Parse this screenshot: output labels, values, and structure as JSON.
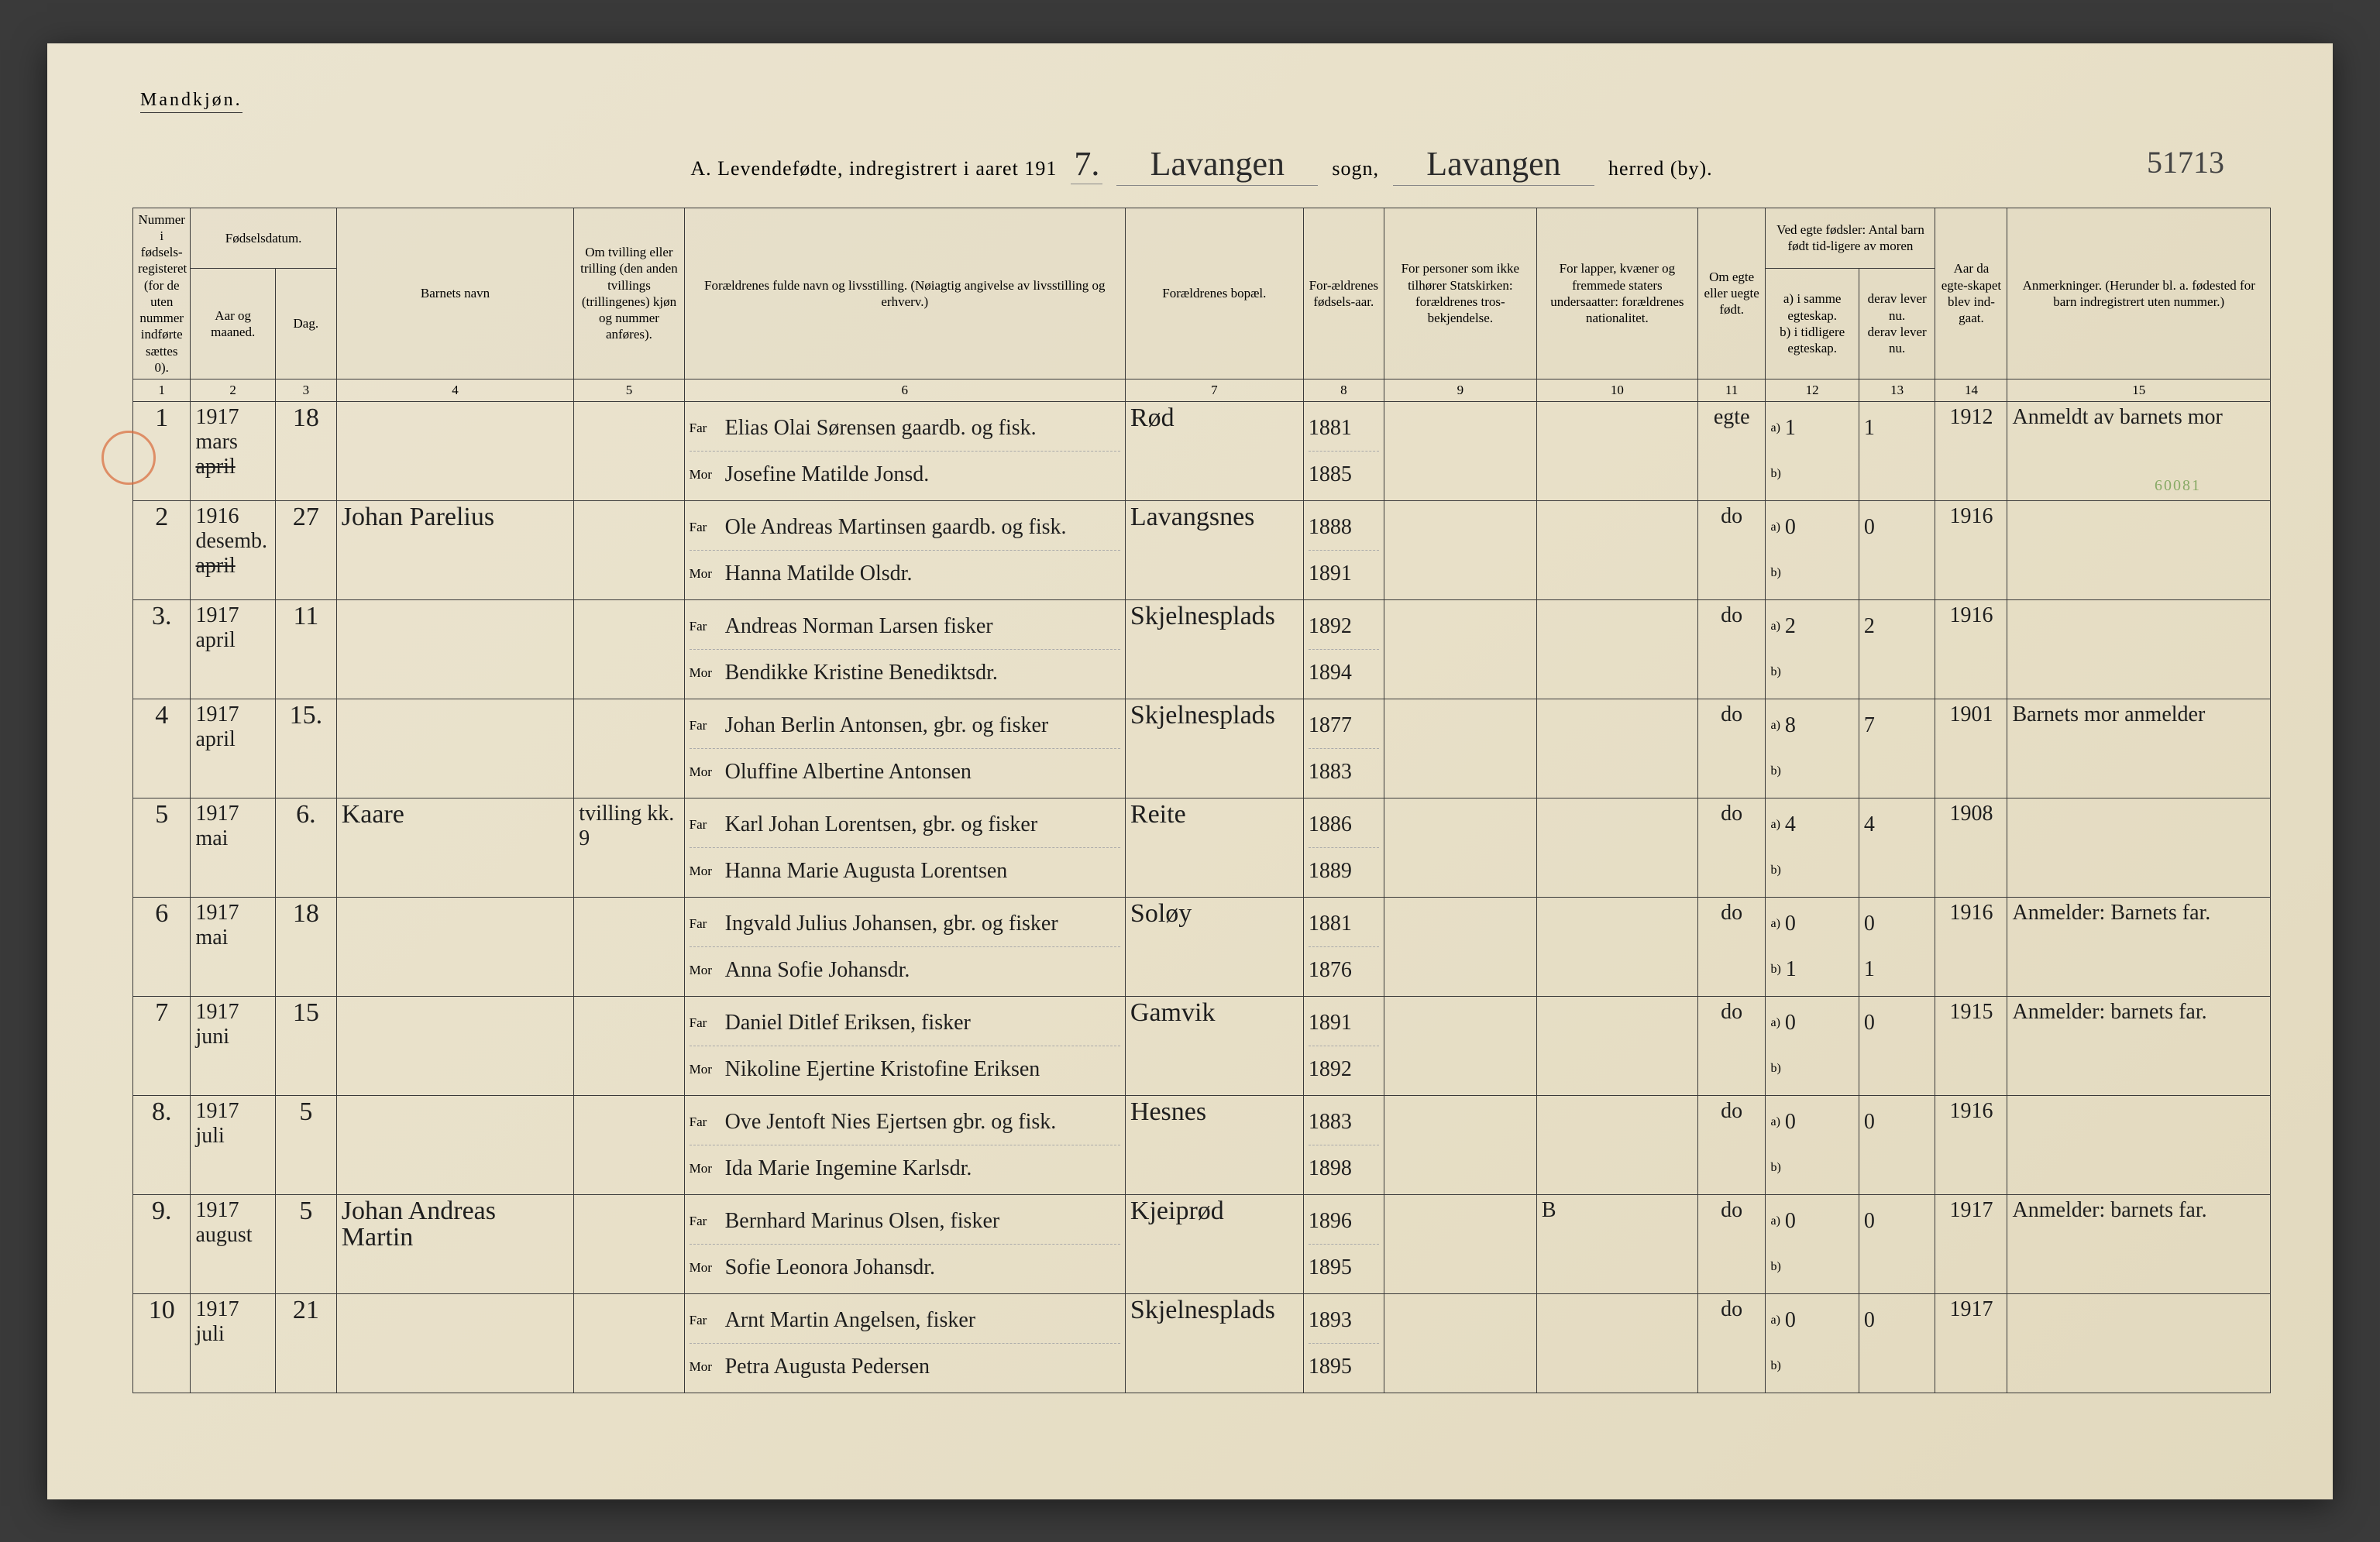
{
  "header": {
    "gender": "Mandkjøn.",
    "title_prefix": "A. Levendefødte, indregistrert i aaret 191",
    "year_digit": "7.",
    "sogn_value": "Lavangen",
    "sogn_label": "sogn,",
    "herred_value": "Lavangen",
    "herred_label": "herred (by).",
    "archive_number": "51713",
    "side_note": "60081"
  },
  "columns": {
    "c1": "Nummer i fødsels-registeret (for de uten nummer indførte sættes 0).",
    "c2a": "Fødselsdatum.",
    "c2": "Aar og maaned.",
    "c3": "Dag.",
    "c4": "Barnets navn",
    "c5": "Om tvilling eller trilling (den anden tvillings (trillingenes) kjøn og nummer anføres).",
    "c6": "Forældrenes fulde navn og livsstilling. (Nøiagtig angivelse av livsstilling og erhverv.)",
    "c7": "Forældrenes bopæl.",
    "c8": "For-ældrenes fødsels-aar.",
    "c9": "For personer som ikke tilhører Statskirken: forældrenes tros-bekjendelse.",
    "c10": "For lapper, kvæner og fremmede staters undersaatter: forældrenes nationalitet.",
    "c11": "Om egte eller uegte født.",
    "c12_top": "Ved egte fødsler: Antal barn født tid-ligere av moren",
    "c12a": "a) i samme egteskap.",
    "c12b": "b) i tidligere egteskap.",
    "c13a": "derav lever nu.",
    "c13b": "derav lever nu.",
    "c14": "Aar da egte-skapet blev ind-gaat.",
    "c15": "Anmerkninger. (Herunder bl. a. fødested for barn indregistrert uten nummer.)",
    "far": "Far",
    "mor": "Mor",
    "a_lbl": "a)",
    "b_lbl": "b)"
  },
  "colnums": [
    "1",
    "2",
    "3",
    "4",
    "5",
    "6",
    "7",
    "8",
    "9",
    "10",
    "11",
    "12",
    "13",
    "14",
    "15"
  ],
  "rows": [
    {
      "n": "1",
      "ym": "1917 mars",
      "ym_struck": "april",
      "day": "18",
      "name": "",
      "twin": "",
      "far": "Elias Olai Sørensen gaardb. og fisk.",
      "mor": "Josefine Matilde Jonsd.",
      "bopel": "Rød",
      "fy_far": "1881",
      "fy_mor": "1885",
      "c9": "",
      "c10": "",
      "egte": "egte",
      "a": "1",
      "b": "",
      "lever_a": "1",
      "lever_b": "",
      "c14": "1912",
      "anm": "Anmeldt av barnets mor"
    },
    {
      "n": "2",
      "ym": "1916 desemb.",
      "ym_struck": "april",
      "day": "27",
      "name": "Johan Parelius",
      "twin": "",
      "far": "Ole Andreas Martinsen gaardb. og fisk.",
      "mor": "Hanna Matilde Olsdr.",
      "bopel": "Lavangsnes",
      "fy_far": "1888",
      "fy_mor": "1891",
      "c9": "",
      "c10": "",
      "egte": "do",
      "a": "0",
      "b": "",
      "lever_a": "0",
      "lever_b": "",
      "c14": "1916",
      "anm": ""
    },
    {
      "n": "3.",
      "ym": "1917 april",
      "ym_struck": "",
      "day": "11",
      "name": "",
      "twin": "",
      "far": "Andreas Norman Larsen fisker",
      "mor": "Bendikke Kristine Benediktsdr.",
      "bopel": "Skjelnesplads",
      "fy_far": "1892",
      "fy_mor": "1894",
      "c9": "",
      "c10": "",
      "egte": "do",
      "a": "2",
      "b": "",
      "lever_a": "2",
      "lever_b": "",
      "c14": "1916",
      "anm": ""
    },
    {
      "n": "4",
      "ym": "1917 april",
      "ym_struck": "",
      "day": "15.",
      "name": "",
      "twin": "",
      "far": "Johan Berlin Antonsen, gbr. og fisker",
      "mor": "Oluffine Albertine Antonsen",
      "bopel": "Skjelnesplads",
      "fy_far": "1877",
      "fy_mor": "1883",
      "c9": "",
      "c10": "",
      "egte": "do",
      "a": "8",
      "b": "",
      "lever_a": "7",
      "lever_b": "",
      "c14": "1901",
      "anm": "Barnets mor anmelder"
    },
    {
      "n": "5",
      "ym": "1917 mai",
      "ym_struck": "",
      "day": "6.",
      "name": "Kaare",
      "twin": "tvilling kk. 9",
      "far": "Karl Johan Lorentsen, gbr. og fisker",
      "mor": "Hanna Marie Augusta Lorentsen",
      "bopel": "Reite",
      "fy_far": "1886",
      "fy_mor": "1889",
      "c9": "",
      "c10": "",
      "egte": "do",
      "a": "4",
      "b": "",
      "lever_a": "4",
      "lever_b": "",
      "c14": "1908",
      "anm": ""
    },
    {
      "n": "6",
      "ym": "1917 mai",
      "ym_struck": "",
      "day": "18",
      "name": "",
      "twin": "",
      "far": "Ingvald Julius Johansen, gbr. og fisker",
      "mor": "Anna Sofie Johansdr.",
      "bopel": "Soløy",
      "fy_far": "1881",
      "fy_mor": "1876",
      "c9": "",
      "c10": "",
      "egte": "do",
      "a": "0",
      "b": "1",
      "lever_a": "0",
      "lever_b": "1",
      "c14": "1916",
      "anm": "Anmelder: Barnets far."
    },
    {
      "n": "7",
      "ym": "1917 juni",
      "ym_struck": "",
      "day": "15",
      "name": "",
      "twin": "",
      "far": "Daniel Ditlef Eriksen, fisker",
      "mor": "Nikoline Ejertine Kristofine Eriksen",
      "bopel": "Gamvik",
      "fy_far": "1891",
      "fy_mor": "1892",
      "c9": "",
      "c10": "",
      "egte": "do",
      "a": "0",
      "b": "",
      "lever_a": "0",
      "lever_b": "",
      "c14": "1915",
      "anm": "Anmelder: barnets far."
    },
    {
      "n": "8.",
      "ym": "1917 juli",
      "ym_struck": "",
      "day": "5",
      "name": "",
      "twin": "",
      "far": "Ove Jentoft Nies Ejertsen gbr. og fisk.",
      "mor": "Ida Marie Ingemine Karlsdr.",
      "bopel": "Hesnes",
      "fy_far": "1883",
      "fy_mor": "1898",
      "c9": "",
      "c10": "",
      "egte": "do",
      "a": "0",
      "b": "",
      "lever_a": "0",
      "lever_b": "",
      "c14": "1916",
      "anm": ""
    },
    {
      "n": "9.",
      "ym": "1917 august",
      "ym_struck": "",
      "day": "5",
      "name": "Johan Andreas Martin",
      "twin": "",
      "far": "Bernhard Marinus Olsen, fisker",
      "mor": "Sofie Leonora Johansdr.",
      "bopel": "Kjeiprød",
      "fy_far": "1896",
      "fy_mor": "1895",
      "c9": "",
      "c10": "B",
      "egte": "do",
      "a": "0",
      "b": "",
      "lever_a": "0",
      "lever_b": "",
      "c14": "1917",
      "anm": "Anmelder: barnets far."
    },
    {
      "n": "10",
      "ym": "1917 juli",
      "ym_struck": "",
      "day": "21",
      "name": "",
      "twin": "",
      "far": "Arnt Martin Angelsen, fisker",
      "mor": "Petra Augusta Pedersen",
      "bopel": "Skjelnesplads",
      "fy_far": "1893",
      "fy_mor": "1895",
      "c9": "",
      "c10": "",
      "egte": "do",
      "a": "0",
      "b": "",
      "lever_a": "0",
      "lever_b": "",
      "c14": "1917",
      "anm": ""
    }
  ]
}
